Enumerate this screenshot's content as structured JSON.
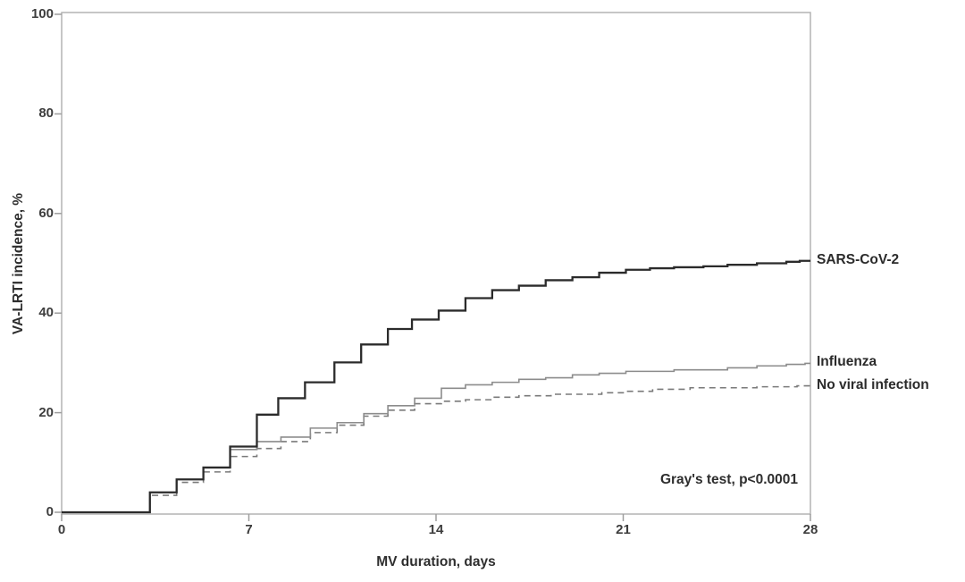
{
  "page": {
    "background": "#ffffff"
  },
  "chart_data": {
    "type": "line",
    "line_style": "step-after",
    "title": "",
    "xlabel": "MV duration, days",
    "ylabel": "VA-LRTI incidence, %",
    "xlim": [
      0,
      28
    ],
    "ylim": [
      0,
      100
    ],
    "xticks": [
      0,
      7,
      14,
      21,
      28
    ],
    "yticks": [
      0,
      20,
      40,
      60,
      80,
      100
    ],
    "grid": false,
    "legend_position": "right-outside",
    "annotation": "Gray's test, p<0.0001",
    "colors": {
      "frame": "#b3b3b3",
      "tick": "#9e9e9e",
      "text": "#3d3d3d"
    },
    "series": [
      {
        "name": "SARS-CoV-2",
        "color": "#2b2b2b",
        "width": 2.3,
        "dash": null,
        "points": [
          [
            0,
            0
          ],
          [
            3.3,
            4.0
          ],
          [
            4.3,
            6.6
          ],
          [
            5.3,
            9.0
          ],
          [
            6.3,
            13.2
          ],
          [
            7.3,
            19.6
          ],
          [
            8.1,
            22.9
          ],
          [
            9.1,
            26.1
          ],
          [
            10.2,
            30.1
          ],
          [
            11.2,
            33.7
          ],
          [
            12.2,
            36.8
          ],
          [
            13.1,
            38.7
          ],
          [
            14.1,
            40.5
          ],
          [
            15.1,
            43.0
          ],
          [
            16.1,
            44.6
          ],
          [
            17.1,
            45.5
          ],
          [
            18.1,
            46.6
          ],
          [
            19.1,
            47.2
          ],
          [
            20.1,
            48.1
          ],
          [
            21.1,
            48.7
          ],
          [
            22.0,
            49.0
          ],
          [
            22.9,
            49.2
          ],
          [
            24.0,
            49.4
          ],
          [
            24.9,
            49.7
          ],
          [
            26.0,
            50.0
          ],
          [
            27.1,
            50.3
          ],
          [
            27.6,
            50.5
          ]
        ]
      },
      {
        "name": "Influenza",
        "color": "#8c8c8c",
        "width": 1.6,
        "dash": null,
        "points": [
          [
            0,
            0
          ],
          [
            3.3,
            4.0
          ],
          [
            4.3,
            6.6
          ],
          [
            5.3,
            8.9
          ],
          [
            6.3,
            12.6
          ],
          [
            7.3,
            14.2
          ],
          [
            8.2,
            15.1
          ],
          [
            9.3,
            16.9
          ],
          [
            10.3,
            18.0
          ],
          [
            11.3,
            19.8
          ],
          [
            12.2,
            21.4
          ],
          [
            13.2,
            22.9
          ],
          [
            14.2,
            24.9
          ],
          [
            15.1,
            25.6
          ],
          [
            16.1,
            26.1
          ],
          [
            17.1,
            26.7
          ],
          [
            18.1,
            27.0
          ],
          [
            19.1,
            27.6
          ],
          [
            20.1,
            27.9
          ],
          [
            21.1,
            28.3
          ],
          [
            22.9,
            28.6
          ],
          [
            24.9,
            29.0
          ],
          [
            26.0,
            29.4
          ],
          [
            27.1,
            29.7
          ],
          [
            27.8,
            29.9
          ]
        ]
      },
      {
        "name": "No viral infection",
        "color": "#7a7a7a",
        "width": 1.6,
        "dash": "7 5",
        "points": [
          [
            0,
            0
          ],
          [
            3.3,
            3.4
          ],
          [
            4.3,
            6.0
          ],
          [
            5.3,
            8.1
          ],
          [
            6.3,
            11.2
          ],
          [
            7.3,
            12.8
          ],
          [
            8.2,
            14.2
          ],
          [
            9.3,
            16.0
          ],
          [
            10.3,
            17.5
          ],
          [
            11.3,
            19.3
          ],
          [
            12.2,
            20.5
          ],
          [
            13.2,
            21.8
          ],
          [
            14.2,
            22.3
          ],
          [
            15.1,
            22.6
          ],
          [
            16.1,
            23.1
          ],
          [
            17.1,
            23.4
          ],
          [
            18.3,
            23.7
          ],
          [
            20.2,
            24.0
          ],
          [
            21.1,
            24.3
          ],
          [
            22.1,
            24.7
          ],
          [
            23.5,
            25.0
          ],
          [
            26.0,
            25.2
          ],
          [
            27.5,
            25.4
          ]
        ]
      }
    ]
  }
}
